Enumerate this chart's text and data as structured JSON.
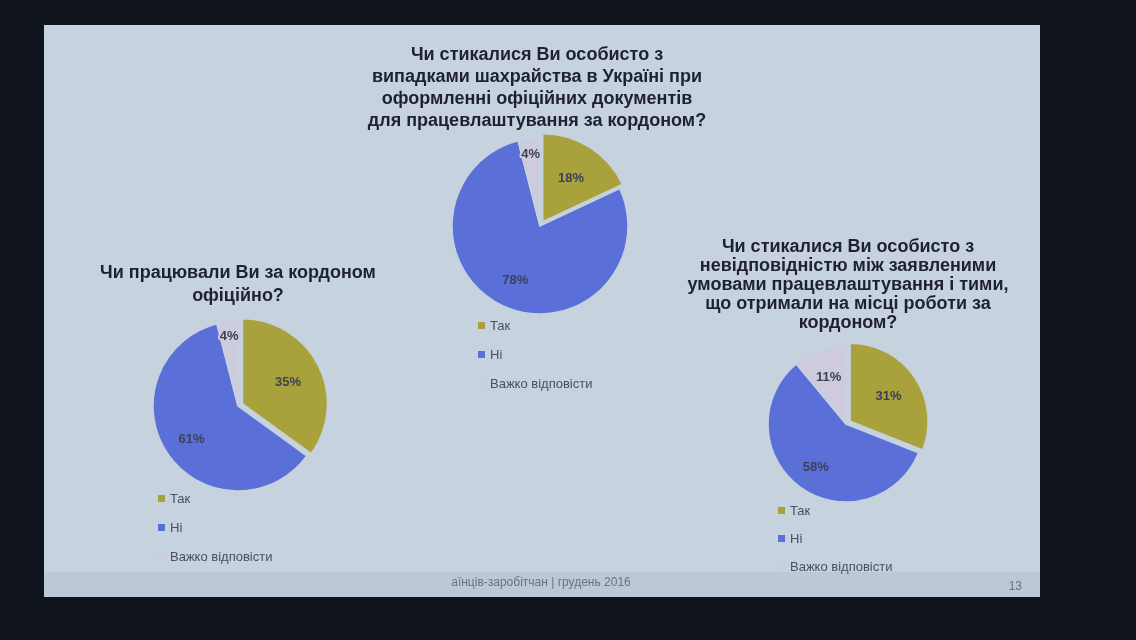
{
  "chart_data": [
    {
      "type": "pie",
      "title": "Чи стикалися Ви особисто з випадками шахрайства в Україні при оформленні офіційних документів для працевлаштування за кордоном?",
      "categories": [
        "Так",
        "Ні",
        "Важко відповісти"
      ],
      "values": [
        18,
        78,
        4
      ],
      "colors": [
        "#a9a23c",
        "#5a6fd8",
        "#cdcbdc"
      ],
      "value_labels": [
        "18%",
        "78%",
        "4%"
      ],
      "legend": "bottom",
      "annotations": [
        "аїнців-заробітчан | грудень 2016",
        "13"
      ]
    },
    {
      "type": "pie",
      "title": "Чи працювали Ви за кордоном офіційно?",
      "categories": [
        "Так",
        "Ні",
        "Важко відповісти"
      ],
      "values": [
        35,
        61,
        4
      ],
      "colors": [
        "#a9a23c",
        "#5a6fd8",
        "#cdcbdc"
      ],
      "value_labels": [
        "35%",
        "61%",
        "4%"
      ],
      "legend": "bottom"
    },
    {
      "type": "pie",
      "title": "Чи стикалися Ви особисто з невідповідністю між заявленими умовами працевлаштування і тими, що отримали на місці роботи за кордоном?",
      "categories": [
        "Так",
        "Ні",
        "Важко відповісти"
      ],
      "values": [
        31,
        58,
        11
      ],
      "colors": [
        "#a9a23c",
        "#5a6fd8",
        "#cdcbdc"
      ],
      "value_labels": [
        "31%",
        "58%",
        "11%"
      ],
      "legend": "bottom"
    }
  ]
}
